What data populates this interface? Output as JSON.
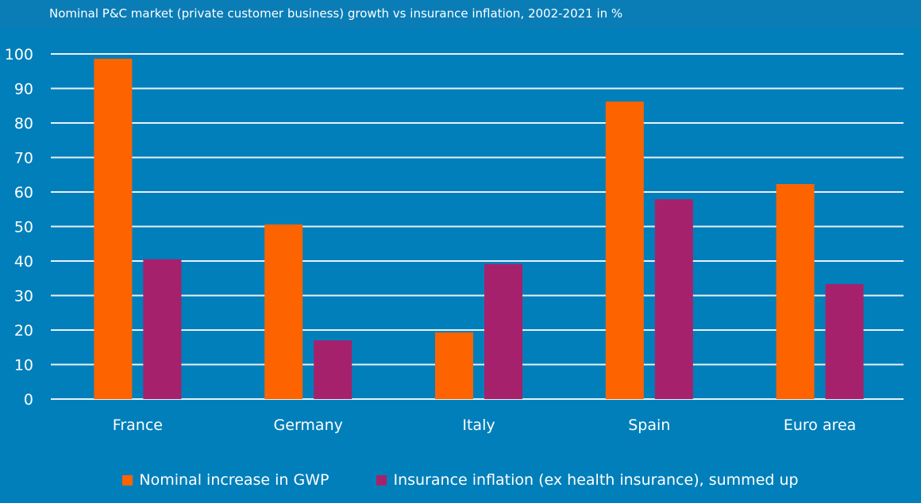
{
  "chart_data": {
    "type": "bar",
    "title": "Nominal P&C market (private customer business) growth vs insurance inflation, 2002-2021 in %",
    "categories": [
      "France",
      "Germany",
      "Italy",
      "Spain",
      "Euro area"
    ],
    "series": [
      {
        "name": "Nominal increase in GWP",
        "color": "#fd6400",
        "values": [
          98.6,
          50.6,
          19.3,
          86.2,
          62.3
        ]
      },
      {
        "name": "Insurance inflation (ex health insurance), summed up",
        "color": "#a6216c",
        "values": [
          40.5,
          17.0,
          39.1,
          57.9,
          33.3
        ]
      }
    ],
    "ylim": [
      0,
      100
    ],
    "yticks": [
      0,
      10,
      20,
      30,
      40,
      50,
      60,
      70,
      80,
      90,
      100
    ],
    "grid": true,
    "legend": "bottom",
    "background": "#017fba"
  }
}
